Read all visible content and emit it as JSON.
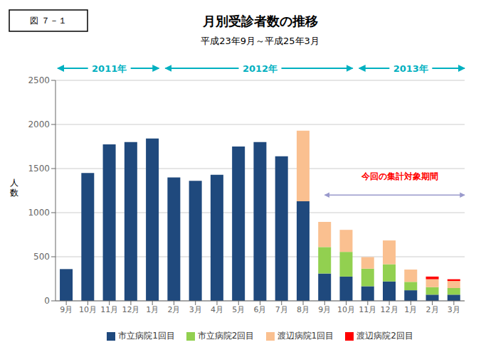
{
  "chart_data": {
    "type": "bar",
    "stacked": true,
    "title": "月別受診者数の推移",
    "subtitle": "平成23年9月～平成25年3月",
    "ylabel": "人\n数",
    "categories": [
      "9月",
      "10月",
      "11月",
      "12月",
      "1月",
      "2月",
      "3月",
      "4月",
      "5月",
      "6月",
      "7月",
      "8月",
      "9月",
      "10月",
      "11月",
      "12月",
      "1月",
      "2月",
      "3月"
    ],
    "series": [
      {
        "name": "市立病院1回目",
        "color": "#1F497D",
        "values": [
          360,
          1450,
          1775,
          1800,
          1840,
          1400,
          1360,
          1430,
          1750,
          1800,
          1640,
          1130,
          310,
          275,
          165,
          220,
          120,
          70,
          70
        ]
      },
      {
        "name": "市立病院2回目",
        "color": "#92D050",
        "values": [
          0,
          0,
          0,
          0,
          0,
          0,
          0,
          0,
          0,
          0,
          0,
          0,
          300,
          280,
          200,
          195,
          95,
          85,
          75
        ]
      },
      {
        "name": "渡辺病院1回目",
        "color": "#FAC090",
        "values": [
          0,
          0,
          0,
          0,
          0,
          0,
          0,
          0,
          0,
          0,
          0,
          800,
          285,
          250,
          130,
          270,
          140,
          90,
          80
        ]
      },
      {
        "name": "渡辺病院2回目",
        "color": "#FF0000",
        "values": [
          0,
          0,
          0,
          0,
          0,
          0,
          0,
          0,
          0,
          0,
          0,
          0,
          0,
          0,
          0,
          0,
          0,
          30,
          20
        ]
      }
    ],
    "ylim": [
      0,
      2500
    ],
    "yticks": [
      0,
      500,
      1000,
      1500,
      2000,
      2500
    ],
    "grid": true,
    "legend": "bottom",
    "annotations": [
      {
        "text": "図  ７－１"
      },
      {
        "text": "2011年",
        "color": "#00B0C0"
      },
      {
        "text": "2012年",
        "color": "#00B0C0"
      },
      {
        "text": "2013年",
        "color": "#00B0C0"
      },
      {
        "text": "今回の集計対象期間",
        "color": "#FF0000"
      }
    ]
  }
}
